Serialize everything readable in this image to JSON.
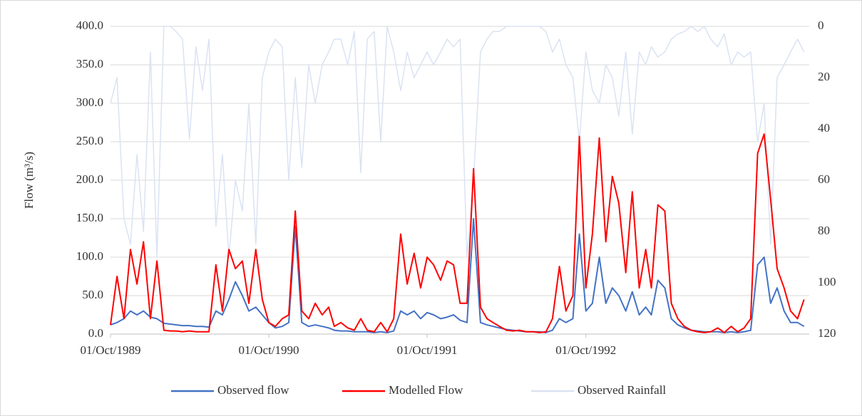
{
  "chart_data": {
    "type": "line",
    "y_label": "Flow (m³/s)",
    "x": [
      "1989-10-01",
      "1989-10-16",
      "1989-11-01",
      "1989-11-16",
      "1989-12-01",
      "1989-12-16",
      "1990-01-01",
      "1990-01-16",
      "1990-02-01",
      "1990-02-16",
      "1990-03-01",
      "1990-03-16",
      "1990-04-01",
      "1990-04-16",
      "1990-05-01",
      "1990-05-16",
      "1990-06-01",
      "1990-06-16",
      "1990-07-01",
      "1990-07-16",
      "1990-08-01",
      "1990-08-16",
      "1990-09-01",
      "1990-09-16",
      "1990-10-01",
      "1990-10-16",
      "1990-11-01",
      "1990-11-16",
      "1990-12-01",
      "1990-12-16",
      "1991-01-01",
      "1991-01-16",
      "1991-02-01",
      "1991-02-16",
      "1991-03-01",
      "1991-03-16",
      "1991-04-01",
      "1991-04-16",
      "1991-05-01",
      "1991-05-16",
      "1991-06-01",
      "1991-06-16",
      "1991-07-01",
      "1991-07-16",
      "1991-08-01",
      "1991-08-16",
      "1991-09-01",
      "1991-09-16",
      "1991-10-01",
      "1991-10-16",
      "1991-11-01",
      "1991-11-16",
      "1991-12-01",
      "1991-12-16",
      "1992-01-01",
      "1992-01-16",
      "1992-02-01",
      "1992-02-16",
      "1992-03-01",
      "1992-03-16",
      "1992-04-01",
      "1992-04-16",
      "1992-05-01",
      "1992-05-16",
      "1992-06-01",
      "1992-06-16",
      "1992-07-01",
      "1992-07-16",
      "1992-08-01",
      "1992-08-16",
      "1992-09-01",
      "1992-09-16",
      "1992-10-01",
      "1992-10-16",
      "1992-11-01",
      "1992-11-16",
      "1992-12-01",
      "1992-12-16",
      "1993-01-01",
      "1993-01-16",
      "1993-02-01",
      "1993-02-16",
      "1993-03-01",
      "1993-03-16",
      "1993-04-01",
      "1993-04-16",
      "1993-05-01",
      "1993-05-16",
      "1993-06-01",
      "1993-06-16",
      "1993-07-01",
      "1993-07-16",
      "1993-08-01",
      "1993-08-16",
      "1993-09-01",
      "1993-09-16",
      "1993-10-01",
      "1993-10-16",
      "1993-11-01",
      "1993-11-16",
      "1993-12-01",
      "1993-12-16",
      "1994-01-01",
      "1994-01-16",
      "1994-02-01",
      "1994-02-16"
    ],
    "xlim": [
      "1989-10-01",
      "1994-02-28"
    ],
    "xticks": [
      {
        "value": "1989-10-01",
        "label": "01/Oct/1989"
      },
      {
        "value": "1990-10-01",
        "label": "01/Oct/1990"
      },
      {
        "value": "1991-10-01",
        "label": "01/Oct/1991"
      },
      {
        "value": "1992-10-01",
        "label": "01/Oct/1992"
      }
    ],
    "ylim": [
      0,
      400
    ],
    "yticks": [
      {
        "value": 0,
        "label": "0.0"
      },
      {
        "value": 50,
        "label": "50.0"
      },
      {
        "value": 100,
        "label": "100.0"
      },
      {
        "value": 150,
        "label": "150.0"
      },
      {
        "value": 200,
        "label": "200.0"
      },
      {
        "value": 250,
        "label": "250.0"
      },
      {
        "value": 300,
        "label": "300.0"
      },
      {
        "value": 350,
        "label": "350.0"
      },
      {
        "value": 400,
        "label": "400.0"
      }
    ],
    "y2lim": [
      0,
      120
    ],
    "y2_inverted": true,
    "y2ticks": [
      0,
      20,
      40,
      60,
      80,
      100,
      120
    ],
    "grid": true,
    "legend": "bottom",
    "series": [
      {
        "name": "Observed Rainfall",
        "color": "#dae3f3",
        "axis": "y2",
        "values": [
          30,
          20,
          75,
          85,
          50,
          80,
          10,
          90,
          0,
          0,
          2,
          5,
          44,
          8,
          25,
          5,
          78,
          50,
          90,
          60,
          72,
          30,
          85,
          20,
          10,
          5,
          8,
          60,
          20,
          55,
          15,
          30,
          15,
          10,
          5,
          5,
          15,
          2,
          57,
          5,
          2,
          45,
          0,
          10,
          25,
          10,
          20,
          15,
          10,
          15,
          10,
          5,
          8,
          5,
          90,
          60,
          10,
          5,
          2,
          2,
          0,
          0,
          0,
          0,
          0,
          0,
          2,
          10,
          5,
          15,
          20,
          45,
          10,
          25,
          30,
          15,
          20,
          35,
          10,
          42,
          10,
          15,
          8,
          12,
          10,
          5,
          3,
          2,
          0,
          2,
          0,
          5,
          8,
          3,
          15,
          10,
          12,
          10,
          45,
          30,
          85,
          20,
          15,
          10,
          5,
          10
        ]
      },
      {
        "name": "Observed flow",
        "color": "#4472c4",
        "values": [
          12,
          15,
          20,
          30,
          25,
          30,
          22,
          20,
          14,
          13,
          12,
          11,
          11,
          10,
          10,
          9,
          30,
          25,
          45,
          68,
          50,
          30,
          35,
          25,
          15,
          8,
          10,
          15,
          140,
          15,
          10,
          12,
          10,
          8,
          5,
          4,
          4,
          3,
          3,
          3,
          2,
          3,
          2,
          4,
          30,
          25,
          30,
          20,
          28,
          25,
          20,
          22,
          25,
          18,
          15,
          150,
          15,
          12,
          10,
          8,
          6,
          5,
          4,
          3,
          3,
          3,
          2,
          5,
          20,
          15,
          20,
          130,
          30,
          40,
          100,
          40,
          60,
          50,
          30,
          55,
          25,
          35,
          25,
          70,
          60,
          20,
          12,
          8,
          5,
          4,
          3,
          3,
          3,
          2,
          3,
          2,
          3,
          5,
          90,
          100,
          40,
          60,
          30,
          15,
          15,
          10
        ]
      },
      {
        "name": "Modelled Flow",
        "color": "#ff0000",
        "values": [
          12,
          75,
          20,
          110,
          65,
          120,
          20,
          95,
          5,
          4,
          4,
          3,
          4,
          3,
          3,
          3,
          90,
          30,
          110,
          85,
          95,
          40,
          110,
          45,
          15,
          10,
          20,
          25,
          160,
          30,
          20,
          40,
          25,
          35,
          10,
          15,
          8,
          5,
          20,
          5,
          3,
          15,
          3,
          20,
          130,
          65,
          105,
          60,
          100,
          90,
          70,
          95,
          90,
          40,
          40,
          215,
          35,
          20,
          15,
          10,
          5,
          4,
          5,
          3,
          3,
          2,
          3,
          20,
          88,
          30,
          50,
          257,
          60,
          130,
          255,
          120,
          205,
          170,
          80,
          185,
          60,
          110,
          60,
          168,
          160,
          40,
          20,
          10,
          5,
          3,
          2,
          3,
          8,
          2,
          10,
          3,
          8,
          20,
          235,
          260,
          175,
          85,
          60,
          30,
          20,
          45
        ]
      }
    ]
  }
}
